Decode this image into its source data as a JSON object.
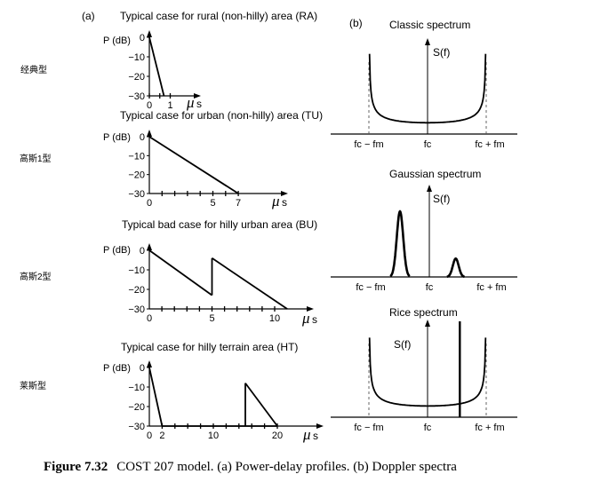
{
  "panel_labels": {
    "a": "(a)",
    "b": "(b)"
  },
  "row_labels": [
    "经典型",
    "高斯1型",
    "高斯2型",
    "莱斯型"
  ],
  "caption": {
    "label": "Figure 7.32",
    "text": "COST 207 model. (a) Power-delay profiles. (b) Doppler spectra"
  },
  "chart_data": [
    {
      "type": "line",
      "title": "Typical case for rural (non-hilly) area (RA)",
      "ylabel": "P (dB)",
      "xlabel_symbol": "μ",
      "xlabel_unit": "s",
      "xlim": [
        0,
        1.75
      ],
      "ylim": [
        -30,
        0
      ],
      "yticks": [
        0,
        -10,
        -20,
        -30
      ],
      "xticks": [
        0,
        1
      ],
      "minor_xticks": [
        0,
        0.5,
        1
      ],
      "segments": [
        {
          "x": [
            0,
            0.7
          ],
          "y": [
            0,
            -30
          ]
        }
      ]
    },
    {
      "type": "line",
      "title": "Typical case for urban (non-hilly) area (TU)",
      "ylabel": "P (dB)",
      "xlabel_symbol": "μ",
      "xlabel_unit": "s",
      "xlim": [
        0,
        9.5
      ],
      "ylim": [
        -30,
        0
      ],
      "yticks": [
        0,
        -10,
        -20,
        -30
      ],
      "xticks": [
        0,
        5,
        7
      ],
      "minor_xticks": [
        1,
        2,
        3,
        4,
        5,
        6,
        7
      ],
      "segments": [
        {
          "x": [
            0,
            7
          ],
          "y": [
            0,
            -30
          ]
        }
      ]
    },
    {
      "type": "line",
      "title": "Typical bad case for hilly urban area (BU)",
      "ylabel": "P (dB)",
      "xlabel_symbol": "μ",
      "xlabel_unit": "s",
      "xlim": [
        0,
        12.5
      ],
      "ylim": [
        -30,
        0
      ],
      "yticks": [
        0,
        -10,
        -20,
        -30
      ],
      "xticks": [
        0,
        5,
        10
      ],
      "minor_xticks": [
        1,
        2,
        3,
        4,
        5,
        6,
        7,
        8,
        9,
        10
      ],
      "segments": [
        {
          "x": [
            0,
            5
          ],
          "y": [
            0,
            -23
          ]
        },
        {
          "x": [
            5,
            5
          ],
          "y": [
            -23,
            -4
          ]
        },
        {
          "x": [
            5,
            11
          ],
          "y": [
            -4,
            -30
          ]
        }
      ]
    },
    {
      "type": "line",
      "title": "Typical case for hilly terrain area (HT)",
      "ylabel": "P (dB)",
      "xlabel_symbol": "μ",
      "xlabel_unit": "s",
      "xlim": [
        0,
        25
      ],
      "ylim": [
        -30,
        0
      ],
      "yticks": [
        0,
        -10,
        -20,
        -30
      ],
      "xticks": [
        0,
        2,
        10,
        20
      ],
      "minor_xticks": [
        2,
        4,
        6,
        8,
        10,
        12,
        14,
        16,
        18,
        20
      ],
      "segments": [
        {
          "x": [
            0,
            2
          ],
          "y": [
            0,
            -30
          ]
        },
        {
          "x": [
            2,
            20
          ],
          "y": [
            -30,
            -30
          ]
        },
        {
          "x": [
            15,
            15
          ],
          "y": [
            -30,
            -8
          ]
        },
        {
          "x": [
            15,
            20
          ],
          "y": [
            -8,
            -30
          ]
        }
      ]
    },
    {
      "type": "line",
      "title": "Classic spectrum",
      "ylabel": "S(f)",
      "xticks": [
        "fc − fm",
        "fc",
        "fc + fm"
      ],
      "xlim": [
        -1.35,
        1.35
      ],
      "ylim": [
        0,
        1
      ],
      "curve": "classic",
      "curve_points": [
        {
          "x": -0.99,
          "y": 0.86
        },
        {
          "x": -0.75,
          "y": 0.42
        },
        {
          "x": -0.5,
          "y": 0.22
        },
        {
          "x": 0,
          "y": 0.14
        },
        {
          "x": 0.5,
          "y": 0.22
        },
        {
          "x": 0.75,
          "y": 0.42
        },
        {
          "x": 0.99,
          "y": 0.86
        }
      ],
      "dashed_lines_x": [
        -1,
        1
      ]
    },
    {
      "type": "line",
      "title": "Gaussian spectrum",
      "ylabel": "S(f)",
      "xticks": [
        "fc − fm",
        "fc",
        "fc + fm"
      ],
      "xlim": [
        -1.35,
        1.35
      ],
      "ylim": [
        0,
        1
      ],
      "curve": "gaussian",
      "peaks": [
        {
          "center": -0.5,
          "height": 0.82,
          "sigma": 0.055
        },
        {
          "center": 0.45,
          "height": 0.23,
          "sigma": 0.05
        }
      ]
    },
    {
      "type": "line",
      "title": "Rice spectrum",
      "ylabel": "S(f)",
      "xticks": [
        "fc − fm",
        "fc",
        "fc + fm"
      ],
      "xlim": [
        -1.35,
        1.35
      ],
      "ylim": [
        0,
        1
      ],
      "curve": "classic_plus_line",
      "curve_points": [
        {
          "x": -0.99,
          "y": 0.83
        },
        {
          "x": -0.75,
          "y": 0.42
        },
        {
          "x": -0.5,
          "y": 0.26
        },
        {
          "x": 0,
          "y": 0.18
        },
        {
          "x": 0.5,
          "y": 0.26
        },
        {
          "x": 0.75,
          "y": 0.42
        },
        {
          "x": 0.99,
          "y": 0.83
        }
      ],
      "line_component": {
        "x": 0.55,
        "height": 1.0
      },
      "dashed_lines_x": [
        -1,
        1
      ]
    }
  ]
}
